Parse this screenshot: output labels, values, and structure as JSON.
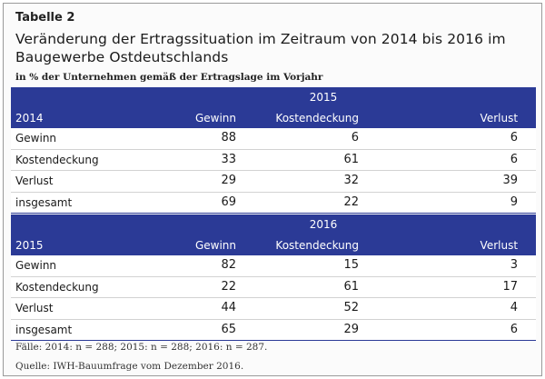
{
  "label": "Tabelle 2",
  "title": "Veränderung der Ertragssituation im Zeitraum von 2014 bis 2016 im Baugewerbe Ostdeutschlands",
  "subtitle": "in % der Unternehmen gemäß der Ertragslage im Vorjahr",
  "tables": [
    {
      "year": "2015",
      "row_header": "2014",
      "columns": [
        "Gewinn",
        "Kostendeckung",
        "Verlust"
      ],
      "rows": [
        {
          "label": "Gewinn",
          "values": [
            "88",
            "6",
            "6"
          ]
        },
        {
          "label": "Kostendeckung",
          "values": [
            "33",
            "61",
            "6"
          ]
        },
        {
          "label": "Verlust",
          "values": [
            "29",
            "32",
            "39"
          ]
        },
        {
          "label": "insgesamt",
          "values": [
            "69",
            "22",
            "9"
          ]
        }
      ]
    },
    {
      "year": "2016",
      "row_header": "2015",
      "columns": [
        "Gewinn",
        "Kostendeckung",
        "Verlust"
      ],
      "rows": [
        {
          "label": "Gewinn",
          "values": [
            "82",
            "15",
            "3"
          ]
        },
        {
          "label": "Kostendeckung",
          "values": [
            "22",
            "61",
            "17"
          ]
        },
        {
          "label": "Verlust",
          "values": [
            "44",
            "52",
            "4"
          ]
        },
        {
          "label": "insgesamt",
          "values": [
            "65",
            "29",
            "6"
          ]
        }
      ]
    }
  ],
  "footnotes": {
    "cases": "Fälle:  2014: n = 288; 2015: n = 288; 2016: n = 287.",
    "source": "Quelle: IWH-Bauumfrage vom Dezember 2016."
  },
  "colors": {
    "header_background": "#2b3a96",
    "header_text": "#ffffff"
  }
}
